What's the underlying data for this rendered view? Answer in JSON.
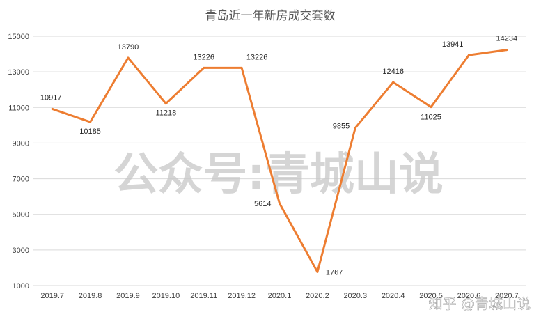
{
  "watermark": "公众号:青城山说",
  "credit": "知乎 @青城山说",
  "colors": {
    "line": "#ED7D31",
    "grid": "#D9D9D9",
    "text": "#404040"
  },
  "chart_data": {
    "type": "line",
    "title": "青岛近一年新房成交套数",
    "categories": [
      "2019.7",
      "2019.8",
      "2019.9",
      "2019.10",
      "2019.11",
      "2019.12",
      "2020.1",
      "2020.2",
      "2020.3",
      "2020.4",
      "2020.5",
      "2020.6",
      "2020.7"
    ],
    "series": [
      {
        "values": [
          10917,
          10185,
          13790,
          11218,
          13226,
          13226,
          5614,
          1767,
          9855,
          12416,
          11025,
          13941,
          14234
        ]
      }
    ],
    "ylim": [
      1000,
      15000
    ],
    "yticks": [
      1000,
      3000,
      5000,
      7000,
      9000,
      11000,
      13000,
      15000
    ],
    "grid": true,
    "data_labels": true
  }
}
